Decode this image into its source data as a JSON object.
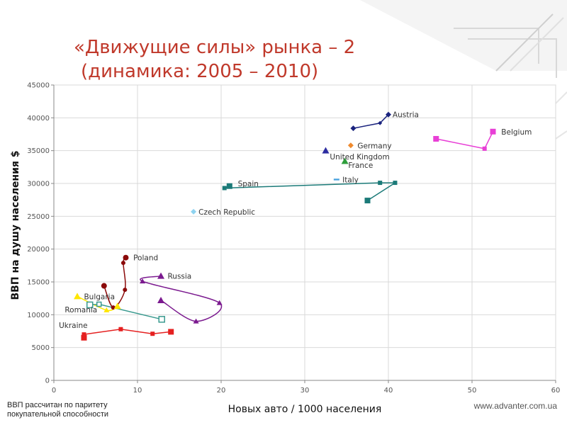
{
  "slide": {
    "title_line1": "«Движущие силы» рынка – 2",
    "title_line2": "(динамика: 2005 – 2010)",
    "footnote_line1": "ВВП рассчитан по паритету",
    "footnote_line2": "покупательной способности",
    "website": "www.advanter.com.ua",
    "title_color": "#c0392b"
  },
  "chart_data": {
    "type": "scatter",
    "title": "",
    "xlabel": "Новых авто / 1000 населения",
    "ylabel": "ВВП на душу населения  $",
    "xlim": [
      0,
      60
    ],
    "ylim": [
      0,
      45000
    ],
    "xticks": [
      0,
      10,
      20,
      30,
      40,
      50,
      60
    ],
    "yticks": [
      0,
      5000,
      10000,
      15000,
      20000,
      25000,
      30000,
      35000,
      40000,
      45000
    ],
    "grid": true,
    "legend": "none",
    "series": [
      {
        "name": "Austria",
        "color": "#1a237e",
        "marker": "diamond",
        "line": "straight",
        "points": [
          [
            35.8,
            38400
          ],
          [
            39,
            39200
          ],
          [
            40,
            40500
          ]
        ]
      },
      {
        "name": "Belgium",
        "color": "#e83fd6",
        "marker": "square",
        "line": "straight",
        "points": [
          [
            45.7,
            36800
          ],
          [
            51.5,
            35300
          ],
          [
            52.5,
            37900
          ]
        ]
      },
      {
        "name": "Germany",
        "color": "#ef8a2e",
        "marker": "diamond",
        "line": "none",
        "points": [
          [
            35.5,
            35800
          ]
        ]
      },
      {
        "name": "United Kingdom",
        "color": "#2c2ca0",
        "marker": "triangle",
        "line": "none",
        "points": [
          [
            32.5,
            35000
          ]
        ]
      },
      {
        "name": "France",
        "color": "#2e9e3c",
        "marker": "triangle",
        "line": "none",
        "points": [
          [
            34.8,
            33400
          ]
        ]
      },
      {
        "name": "Italy",
        "color": "#4aa3df",
        "marker": "dash",
        "line": "none",
        "points": [
          [
            33.8,
            30600
          ]
        ]
      },
      {
        "name": "Spain",
        "color": "#1b7a78",
        "marker": "square",
        "line": "straight",
        "points": [
          [
            21,
            29600
          ],
          [
            20.4,
            29300
          ],
          [
            39,
            30100
          ],
          [
            40.8,
            30100
          ],
          [
            37.5,
            27400
          ]
        ]
      },
      {
        "name": "Czech Republic",
        "color": "#8fd3f0",
        "marker": "diamond",
        "line": "none",
        "points": [
          [
            16.7,
            25700
          ]
        ]
      },
      {
        "name": "Poland",
        "color": "#8b0a0a",
        "marker": "circle",
        "line": "smooth",
        "points": [
          [
            8.6,
            18700
          ],
          [
            8.3,
            17900
          ],
          [
            8.5,
            13800
          ],
          [
            7.1,
            11100
          ],
          [
            6,
            14400
          ]
        ]
      },
      {
        "name": "Russia",
        "color": "#7b1a8f",
        "marker": "triangle",
        "line": "smooth",
        "points": [
          [
            12.8,
            15900
          ],
          [
            10.6,
            15100
          ],
          [
            19.8,
            11800
          ],
          [
            17,
            9000
          ],
          [
            12.8,
            12200
          ]
        ]
      },
      {
        "name": "Bulgaria",
        "color": "#ffe600",
        "marker": "triangle",
        "line": "smooth",
        "points": [
          [
            2.8,
            12800
          ],
          [
            6.3,
            10700
          ],
          [
            7.6,
            11300
          ]
        ]
      },
      {
        "name": "Romania",
        "color": "#3a9a8f",
        "marker": "square-open",
        "line": "straight",
        "points": [
          [
            4.3,
            11500
          ],
          [
            5.4,
            11600
          ],
          [
            12.9,
            9300
          ]
        ]
      },
      {
        "name": "Ukraine",
        "color": "#e52020",
        "marker": "square",
        "line": "straight",
        "points": [
          [
            3.6,
            6500
          ],
          [
            3.6,
            7000
          ],
          [
            8,
            7800
          ],
          [
            11.8,
            7100
          ],
          [
            14,
            7400
          ]
        ]
      }
    ],
    "labels": [
      {
        "text": "Austria",
        "x": 40.5,
        "y": 40500
      },
      {
        "text": "Belgium",
        "x": 53.5,
        "y": 37900
      },
      {
        "text": "Germany",
        "x": 36.3,
        "y": 35800
      },
      {
        "text": "United Kingdom",
        "x": 33,
        "y": 34100
      },
      {
        "text": "France",
        "x": 35.2,
        "y": 32800
      },
      {
        "text": "Italy",
        "x": 34.5,
        "y": 30600
      },
      {
        "text": "Spain",
        "x": 22,
        "y": 30000
      },
      {
        "text": "Czech Republic",
        "x": 17.3,
        "y": 25700
      },
      {
        "text": "Poland",
        "x": 9.5,
        "y": 18700
      },
      {
        "text": "Russia",
        "x": 13.6,
        "y": 15900
      },
      {
        "text": "Bulgaria",
        "x": 3.6,
        "y": 12800
      },
      {
        "text": "Romania",
        "x": 1.3,
        "y": 10800
      },
      {
        "text": "Ukraine",
        "x": 0.6,
        "y": 8400
      }
    ]
  }
}
